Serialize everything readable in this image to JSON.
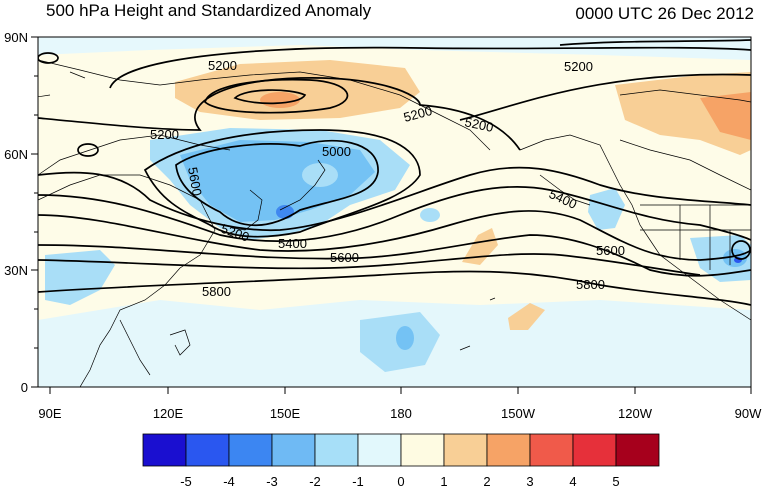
{
  "title": "500 hPa Height and Standardized Anomaly",
  "valid_time": "0000 UTC 26 Dec 2012",
  "map": {
    "lat_ticks": [
      "90N",
      "60N",
      "30N",
      "0"
    ],
    "lon_ticks": [
      "90E",
      "120E",
      "150E",
      "180",
      "150W",
      "120W",
      "90W"
    ],
    "contour_labels": [
      {
        "id": "c5200a",
        "text": "5200"
      },
      {
        "id": "c5200b",
        "text": "5200"
      },
      {
        "id": "c5200c",
        "text": "5200"
      },
      {
        "id": "c5200d",
        "text": "5200"
      },
      {
        "id": "c5200e",
        "text": "5200"
      },
      {
        "id": "c5200f",
        "text": "5200"
      },
      {
        "id": "c5000",
        "text": "5000"
      },
      {
        "id": "c5600a",
        "text": "5600"
      },
      {
        "id": "c5400a",
        "text": "5400"
      },
      {
        "id": "c5400b",
        "text": "5400"
      },
      {
        "id": "c5600b",
        "text": "5600"
      },
      {
        "id": "c5600c",
        "text": "5600"
      },
      {
        "id": "c5800a",
        "text": "5800"
      },
      {
        "id": "c5800b",
        "text": "5800"
      }
    ]
  },
  "colorbar": {
    "labels": [
      "-5",
      "-4",
      "-3",
      "-2",
      "-1",
      "0",
      "1",
      "2",
      "3",
      "4",
      "5"
    ],
    "colors": [
      "#1a0fd0",
      "#2a57f0",
      "#3c86f2",
      "#6fbaf4",
      "#a7dff8",
      "#e2f8fc",
      "#fefbe2",
      "#f8cf96",
      "#f6a366",
      "#f05a4a",
      "#e6303a",
      "#a6001c"
    ]
  }
}
